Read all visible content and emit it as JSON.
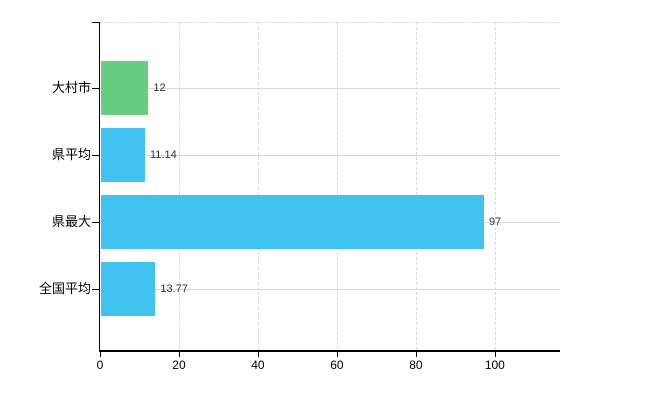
{
  "chart_data": {
    "type": "bar",
    "orientation": "horizontal",
    "title": "",
    "xlabel": "",
    "ylabel": "",
    "categories": [
      "大村市",
      "県平均",
      "県最大",
      "全国平均"
    ],
    "values": [
      12,
      11.14,
      97,
      13.77
    ],
    "value_labels": [
      "12",
      "11.14",
      "97",
      "13.77"
    ],
    "bar_colors": [
      "#66cd81",
      "#41c3f2",
      "#41c3f2",
      "#41c3f2"
    ],
    "xticks": [
      0,
      20,
      40,
      60,
      80,
      100
    ],
    "xtick_labels": [
      "0",
      "20",
      "40",
      "60",
      "80",
      "100"
    ],
    "xlim": [
      0,
      116.5
    ],
    "grid": true,
    "legend": false,
    "colors": {
      "grid": "#d9d9d9",
      "axis": "#000000",
      "category_label": "#000000",
      "value_label": "#333333",
      "background": "#ffffff"
    }
  }
}
